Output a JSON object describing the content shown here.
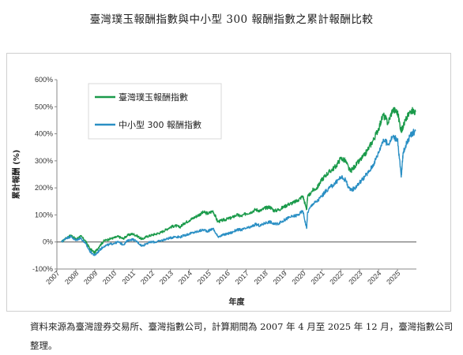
{
  "title": "臺灣璞玉報酬指數與中小型 300 報酬指數之累計報酬比較",
  "source_note": "資料來源為臺灣證券交易所、臺灣指數公司，計算期間為 2007 年 4 月至 2025 年 12 月，臺灣指數公司整理。",
  "colors": {
    "series_1": "#1a9a4a",
    "series_2": "#2a8fc4",
    "zero_line": "#555555"
  },
  "chart_data": {
    "type": "line",
    "title": "臺灣璞玉報酬指數與中小型 300 報酬指數之累計報酬比較",
    "xlabel": "年度",
    "ylabel": "累計報酬 (%)",
    "ylim": [
      -100,
      600
    ],
    "yticks": [
      -100,
      0,
      100,
      200,
      300,
      400,
      500,
      600
    ],
    "ytick_labels": [
      "-100%",
      "0%",
      "100%",
      "200%",
      "300%",
      "400%",
      "500%",
      "600%"
    ],
    "xlim": [
      2007,
      2026
    ],
    "xticks": [
      "2007",
      "2008",
      "2009",
      "2010",
      "2011",
      "2012",
      "2013",
      "2014",
      "2015",
      "2016",
      "2017",
      "2018",
      "2019",
      "2020",
      "2021",
      "2022",
      "2023",
      "2024",
      "2025"
    ],
    "grid": false,
    "legend": "top-left",
    "series": [
      {
        "name": "臺灣璞玉報酬指數",
        "x": [
          2007.25,
          2007.5,
          2007.75,
          2008.0,
          2008.25,
          2008.5,
          2008.75,
          2009.0,
          2009.25,
          2009.5,
          2009.75,
          2010.0,
          2010.25,
          2010.5,
          2010.75,
          2011.0,
          2011.25,
          2011.5,
          2011.75,
          2012.0,
          2012.25,
          2012.5,
          2012.75,
          2013.0,
          2013.25,
          2013.5,
          2013.75,
          2014.0,
          2014.25,
          2014.5,
          2014.75,
          2015.0,
          2015.25,
          2015.5,
          2015.75,
          2016.0,
          2016.25,
          2016.5,
          2016.75,
          2017.0,
          2017.25,
          2017.5,
          2017.75,
          2018.0,
          2018.25,
          2018.5,
          2018.75,
          2019.0,
          2019.25,
          2019.5,
          2019.75,
          2020.0,
          2020.2,
          2020.25,
          2020.5,
          2020.75,
          2021.0,
          2021.25,
          2021.5,
          2021.75,
          2022.0,
          2022.25,
          2022.5,
          2022.75,
          2023.0,
          2023.25,
          2023.5,
          2023.75,
          2024.0,
          2024.25,
          2024.5,
          2024.75,
          2025.0,
          2025.2,
          2025.3,
          2025.5,
          2025.75,
          2025.95
        ],
        "y": [
          0,
          15,
          25,
          10,
          22,
          5,
          -25,
          -40,
          -15,
          5,
          10,
          15,
          20,
          12,
          25,
          30,
          22,
          10,
          20,
          25,
          30,
          35,
          45,
          55,
          60,
          55,
          70,
          80,
          90,
          100,
          110,
          105,
          115,
          75,
          80,
          85,
          90,
          100,
          95,
          105,
          110,
          120,
          115,
          125,
          130,
          115,
          120,
          130,
          140,
          145,
          155,
          170,
          120,
          165,
          190,
          200,
          230,
          250,
          265,
          280,
          310,
          300,
          260,
          280,
          300,
          320,
          350,
          380,
          420,
          470,
          440,
          490,
          480,
          410,
          430,
          460,
          490,
          480
        ]
      },
      {
        "name": "中小型 300 報酬指數",
        "x": [
          2007.25,
          2007.5,
          2007.75,
          2008.0,
          2008.25,
          2008.5,
          2008.75,
          2009.0,
          2009.25,
          2009.5,
          2009.75,
          2010.0,
          2010.25,
          2010.5,
          2010.75,
          2011.0,
          2011.25,
          2011.5,
          2011.75,
          2012.0,
          2012.25,
          2012.5,
          2012.75,
          2013.0,
          2013.25,
          2013.5,
          2013.75,
          2014.0,
          2014.25,
          2014.5,
          2014.75,
          2015.0,
          2015.25,
          2015.5,
          2015.75,
          2016.0,
          2016.25,
          2016.5,
          2016.75,
          2017.0,
          2017.25,
          2017.5,
          2017.75,
          2018.0,
          2018.25,
          2018.5,
          2018.75,
          2019.0,
          2019.25,
          2019.5,
          2019.75,
          2020.0,
          2020.2,
          2020.25,
          2020.5,
          2020.75,
          2021.0,
          2021.25,
          2021.5,
          2021.75,
          2022.0,
          2022.25,
          2022.5,
          2022.75,
          2023.0,
          2023.25,
          2023.5,
          2023.75,
          2024.0,
          2024.25,
          2024.5,
          2024.75,
          2025.0,
          2025.2,
          2025.3,
          2025.5,
          2025.75,
          2025.95
        ],
        "y": [
          0,
          15,
          20,
          5,
          15,
          -5,
          -35,
          -50,
          -30,
          -15,
          -10,
          -5,
          0,
          -10,
          5,
          10,
          0,
          -15,
          -5,
          0,
          0,
          5,
          10,
          15,
          20,
          18,
          25,
          30,
          35,
          40,
          45,
          40,
          50,
          20,
          25,
          30,
          35,
          45,
          45,
          50,
          55,
          65,
          60,
          70,
          75,
          65,
          70,
          80,
          90,
          95,
          100,
          115,
          50,
          110,
          140,
          150,
          170,
          190,
          205,
          220,
          240,
          230,
          190,
          200,
          220,
          240,
          260,
          290,
          330,
          380,
          360,
          390,
          380,
          240,
          330,
          370,
          400,
          410
        ]
      }
    ]
  }
}
